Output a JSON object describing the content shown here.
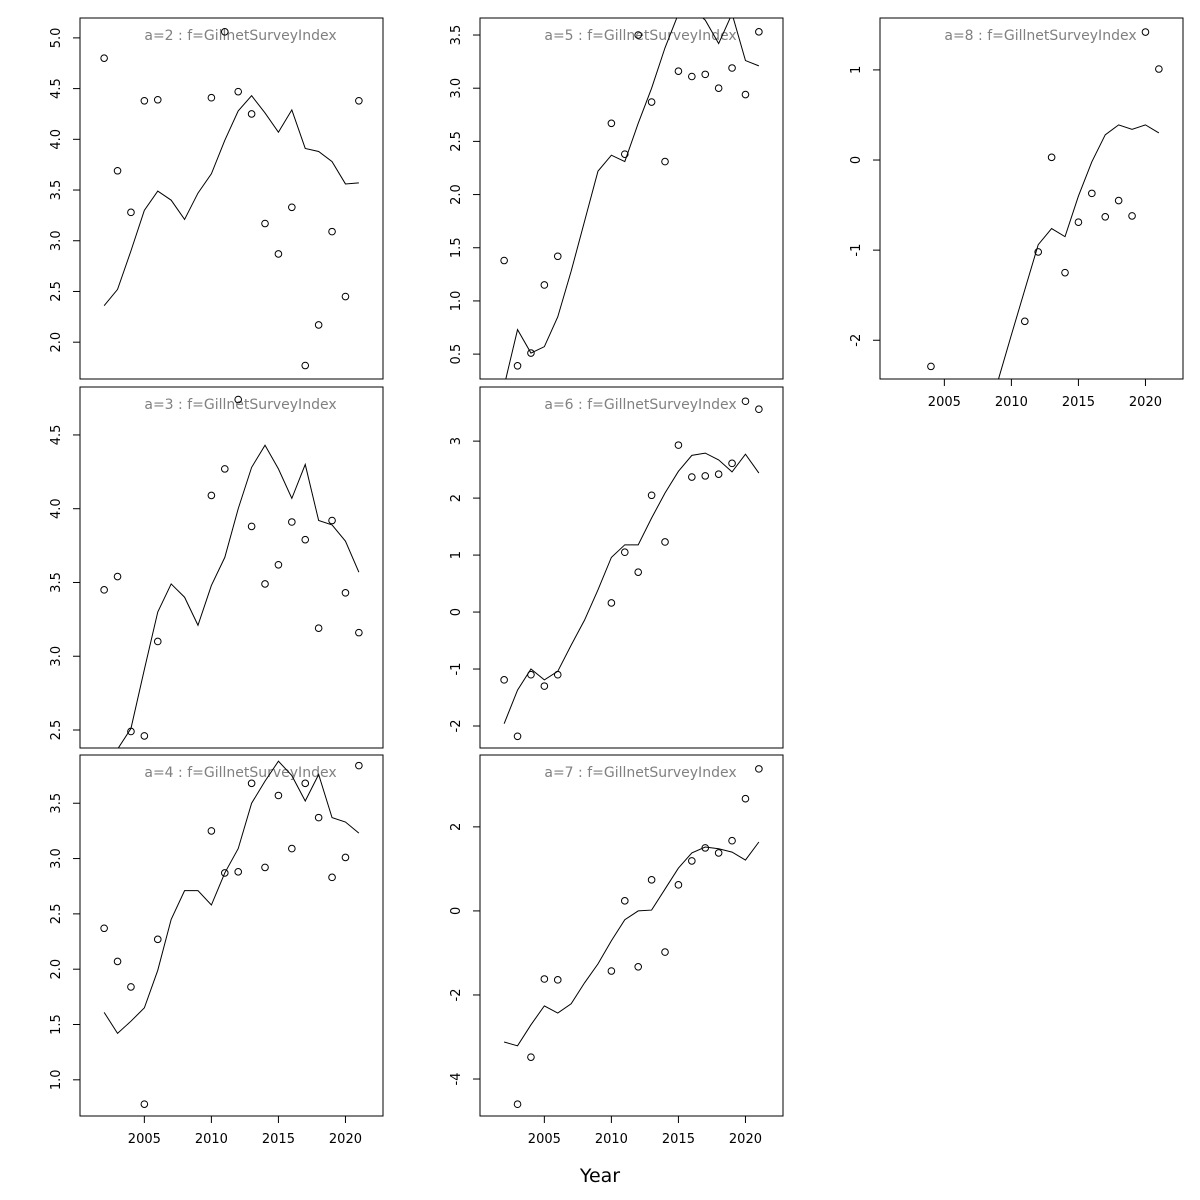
{
  "xlabel": "Year",
  "chart_data": [
    {
      "type": "line",
      "title": "a=2 : f=GillnetSurveyIndex",
      "show_xaxis": false,
      "color": "#000000",
      "x": [
        2002,
        2003,
        2004,
        2005,
        2006,
        2007,
        2008,
        2009,
        2010,
        2011,
        2012,
        2013,
        2014,
        2015,
        2016,
        2017,
        2018,
        2019,
        2020,
        2021
      ],
      "points": [
        4.8,
        3.69,
        3.28,
        4.38,
        4.39,
        null,
        null,
        null,
        4.41,
        5.06,
        4.47,
        4.25,
        3.17,
        2.87,
        3.33,
        1.77,
        2.17,
        3.09,
        2.45,
        4.38
      ],
      "line": [
        2.36,
        2.52,
        2.9,
        3.3,
        3.49,
        3.4,
        3.21,
        3.47,
        3.66,
        3.99,
        4.28,
        4.43,
        4.26,
        4.07,
        4.29,
        3.91,
        3.88,
        3.78,
        3.56,
        3.57
      ],
      "xlim": [
        2000.2,
        2022.8
      ],
      "xticks": [
        2005,
        2010,
        2015,
        2020
      ],
      "ylim": [
        1.637,
        5.196
      ],
      "yticks": [
        {
          "value": 2,
          "label": "2.0"
        },
        {
          "value": 2.5,
          "label": "2.5"
        },
        {
          "value": 3,
          "label": "3.0"
        },
        {
          "value": 3.5,
          "label": "3.5"
        },
        {
          "value": 4,
          "label": "4.0"
        },
        {
          "value": 4.5,
          "label": "4.5"
        },
        {
          "value": 5,
          "label": "5.0"
        }
      ]
    },
    {
      "type": "line",
      "title": "a=3 : f=GillnetSurveyIndex",
      "show_xaxis": false,
      "color": "#000000",
      "x": [
        2002,
        2003,
        2004,
        2005,
        2006,
        2007,
        2008,
        2009,
        2010,
        2011,
        2012,
        2013,
        2014,
        2015,
        2016,
        2017,
        2018,
        2019,
        2020,
        2021
      ],
      "points": [
        3.45,
        3.54,
        2.49,
        2.46,
        3.1,
        null,
        null,
        null,
        4.09,
        4.27,
        4.74,
        3.88,
        3.49,
        3.62,
        3.91,
        3.79,
        3.19,
        3.92,
        3.43,
        3.16
      ],
      "line": [
        2.2,
        2.37,
        2.51,
        2.91,
        3.3,
        3.49,
        3.4,
        3.21,
        3.48,
        3.67,
        4.0,
        4.28,
        4.43,
        4.27,
        4.07,
        4.3,
        3.92,
        3.89,
        3.78,
        3.57
      ],
      "xlim": [
        2000.2,
        2022.8
      ],
      "xticks": [
        2005,
        2010,
        2015,
        2020
      ],
      "ylim": [
        2.378,
        4.825
      ],
      "yticks": [
        {
          "value": 2.5,
          "label": "2.5"
        },
        {
          "value": 3,
          "label": "3.0"
        },
        {
          "value": 3.5,
          "label": "3.5"
        },
        {
          "value": 4,
          "label": "4.0"
        },
        {
          "value": 4.5,
          "label": "4.5"
        }
      ]
    },
    {
      "type": "line",
      "title": "a=4 : f=GillnetSurveyIndex",
      "show_xaxis": true,
      "color": "#000000",
      "x": [
        2002,
        2003,
        2004,
        2005,
        2006,
        2007,
        2008,
        2009,
        2010,
        2011,
        2012,
        2013,
        2014,
        2015,
        2016,
        2017,
        2018,
        2019,
        2020,
        2021
      ],
      "points": [
        2.37,
        2.07,
        1.84,
        0.78,
        2.27,
        null,
        null,
        null,
        3.25,
        2.87,
        2.88,
        3.68,
        2.92,
        3.57,
        3.09,
        3.68,
        3.37,
        2.83,
        3.01,
        3.84
      ],
      "line": [
        1.61,
        1.42,
        1.53,
        1.65,
        1.99,
        2.45,
        2.71,
        2.71,
        2.58,
        2.87,
        3.09,
        3.5,
        3.7,
        3.88,
        3.75,
        3.52,
        3.76,
        3.37,
        3.33,
        3.23
      ],
      "xlim": [
        2000.2,
        2022.8
      ],
      "xticks": [
        2005,
        2010,
        2015,
        2020
      ],
      "ylim": [
        0.673,
        3.936
      ],
      "yticks": [
        {
          "value": 1,
          "label": "1.0"
        },
        {
          "value": 1.5,
          "label": "1.5"
        },
        {
          "value": 2,
          "label": "2.0"
        },
        {
          "value": 2.5,
          "label": "2.5"
        },
        {
          "value": 3,
          "label": "3.0"
        },
        {
          "value": 3.5,
          "label": "3.5"
        }
      ]
    },
    {
      "type": "line",
      "title": "a=5 : f=GillnetSurveyIndex",
      "show_xaxis": false,
      "color": "#000000",
      "x": [
        2002,
        2003,
        2004,
        2005,
        2006,
        2007,
        2008,
        2009,
        2010,
        2011,
        2012,
        2013,
        2014,
        2015,
        2016,
        2017,
        2018,
        2019,
        2020,
        2021
      ],
      "points": [
        1.38,
        0.39,
        0.51,
        1.15,
        1.42,
        null,
        null,
        null,
        2.67,
        2.38,
        3.5,
        2.87,
        2.31,
        3.16,
        3.11,
        3.13,
        3.0,
        3.19,
        2.94,
        3.53
      ],
      "line": [
        0.2,
        0.73,
        0.51,
        0.57,
        0.85,
        1.28,
        1.75,
        2.22,
        2.37,
        2.31,
        2.67,
        3.0,
        3.38,
        3.7,
        3.75,
        3.64,
        3.42,
        3.7,
        3.26,
        3.21
      ],
      "xlim": [
        2000.2,
        2022.8
      ],
      "xticks": [
        2005,
        2010,
        2015,
        2020
      ],
      "ylim": [
        0.266,
        3.66
      ],
      "yticks": [
        {
          "value": 0.5,
          "label": "0.5"
        },
        {
          "value": 1,
          "label": "1.0"
        },
        {
          "value": 1.5,
          "label": "1.5"
        },
        {
          "value": 2,
          "label": "2.0"
        },
        {
          "value": 2.5,
          "label": "2.5"
        },
        {
          "value": 3,
          "label": "3.0"
        },
        {
          "value": 3.5,
          "label": "3.5"
        }
      ]
    },
    {
      "type": "line",
      "title": "a=6 : f=GillnetSurveyIndex",
      "show_xaxis": false,
      "color": "#000000",
      "x": [
        2002,
        2003,
        2004,
        2005,
        2006,
        2007,
        2008,
        2009,
        2010,
        2011,
        2012,
        2013,
        2014,
        2015,
        2016,
        2017,
        2018,
        2019,
        2020,
        2021
      ],
      "points": [
        -1.19,
        -2.18,
        -1.1,
        -1.3,
        -1.1,
        null,
        null,
        null,
        0.16,
        1.05,
        0.7,
        2.05,
        1.23,
        2.93,
        2.37,
        2.39,
        2.42,
        2.61,
        3.7,
        3.56
      ],
      "line": [
        -1.96,
        -1.37,
        -1.0,
        -1.19,
        -1.04,
        -0.58,
        -0.14,
        0.39,
        0.96,
        1.18,
        1.18,
        1.65,
        2.09,
        2.47,
        2.75,
        2.79,
        2.67,
        2.46,
        2.77,
        2.44
      ],
      "xlim": [
        2000.2,
        2022.8
      ],
      "xticks": [
        2005,
        2010,
        2015,
        2020
      ],
      "ylim": [
        -2.386,
        3.95
      ],
      "yticks": [
        -2,
        -1,
        0,
        1,
        2,
        3
      ]
    },
    {
      "type": "line",
      "title": "a=7 : f=GillnetSurveyIndex",
      "show_xaxis": true,
      "color": "#000000",
      "x": [
        2002,
        2003,
        2004,
        2005,
        2006,
        2007,
        2008,
        2009,
        2010,
        2011,
        2012,
        2013,
        2014,
        2015,
        2016,
        2017,
        2018,
        2019,
        2020,
        2021
      ],
      "points": [
        null,
        -4.6,
        -3.48,
        -1.62,
        -1.64,
        null,
        null,
        null,
        -1.43,
        0.24,
        -1.33,
        0.74,
        -0.98,
        0.62,
        1.19,
        1.5,
        1.38,
        1.67,
        2.67,
        3.38
      ],
      "line": [
        -3.12,
        -3.21,
        -2.71,
        -2.26,
        -2.43,
        -2.21,
        -1.71,
        -1.26,
        -0.71,
        -0.21,
        0.0,
        0.02,
        0.52,
        1.02,
        1.38,
        1.52,
        1.48,
        1.4,
        1.21,
        1.64
      ],
      "xlim": [
        2000.2,
        2022.8
      ],
      "xticks": [
        2005,
        2010,
        2015,
        2020
      ],
      "ylim": [
        -4.88,
        3.71
      ],
      "yticks": [
        -4,
        -2,
        0,
        2
      ]
    },
    {
      "type": "line",
      "title": "a=8 : f=GillnetSurveyIndex",
      "show_xaxis": true,
      "color": "#000000",
      "x": [
        2002,
        2003,
        2004,
        2005,
        2006,
        2007,
        2008,
        2009,
        2010,
        2011,
        2012,
        2013,
        2014,
        2015,
        2016,
        2017,
        2018,
        2019,
        2020,
        2021
      ],
      "points": [
        null,
        null,
        -2.29,
        null,
        null,
        null,
        null,
        null,
        null,
        -1.79,
        -1.02,
        0.03,
        -1.25,
        -0.69,
        -0.37,
        -0.63,
        -0.45,
        -0.62,
        1.42,
        1.01
      ],
      "line": [
        null,
        null,
        null,
        null,
        null,
        null,
        null,
        -2.45,
        -1.94,
        -1.44,
        -0.94,
        -0.76,
        -0.85,
        -0.4,
        -0.02,
        0.28,
        0.39,
        0.34,
        0.39,
        0.3
      ],
      "xlim": [
        2000.2,
        2022.8
      ],
      "xticks": [
        2005,
        2010,
        2015,
        2020
      ],
      "ylim": [
        -2.43,
        1.576
      ],
      "yticks": [
        -2,
        -1,
        0,
        1
      ]
    }
  ]
}
